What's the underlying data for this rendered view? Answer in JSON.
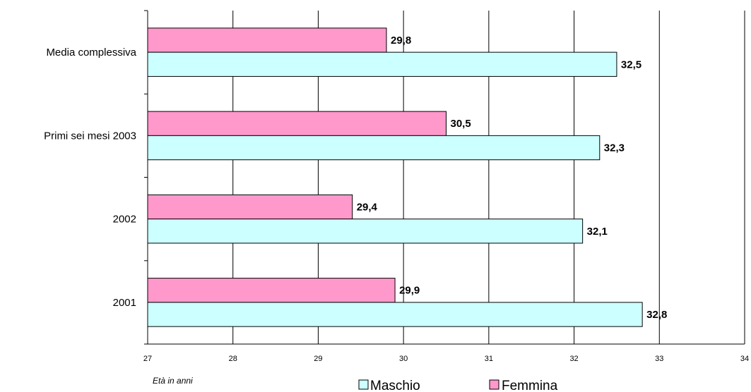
{
  "chart_data": {
    "type": "bar",
    "orientation": "horizontal",
    "categories": [
      "2001",
      "2002",
      "Primi sei mesi 2003",
      "Media complessiva"
    ],
    "series": [
      {
        "name": "Maschio",
        "values": [
          32.8,
          32.1,
          32.3,
          32.5
        ],
        "labels": [
          "32,8",
          "32,1",
          "32,3",
          "32,5"
        ],
        "color": "#ccffff"
      },
      {
        "name": "Femmina",
        "values": [
          29.9,
          29.4,
          30.5,
          29.8
        ],
        "labels": [
          "29,9",
          "29,4",
          "30,5",
          "29,8"
        ],
        "color": "#ff99cc"
      }
    ],
    "xlim": [
      27,
      34
    ],
    "xticks": [
      "27",
      "28",
      "29",
      "30",
      "31",
      "32",
      "33",
      "34"
    ],
    "xlabel": "Età in anni",
    "grid": "vertical",
    "legend": "bottom"
  }
}
